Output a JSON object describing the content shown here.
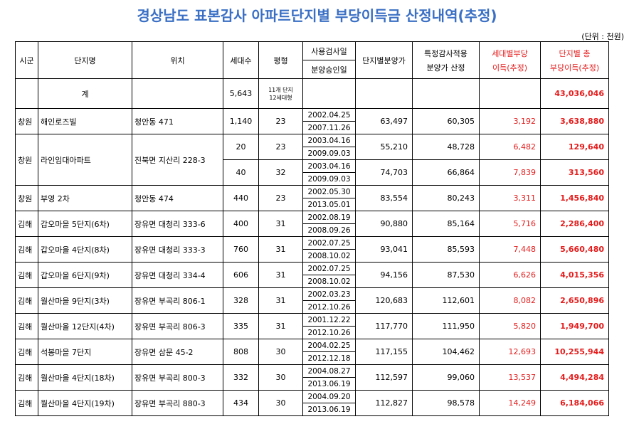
{
  "title": "경상남도 표본감사 아파트단지별 부당이득금 산정내역(추정)",
  "unit": "(단위 : 천원)",
  "headers": {
    "sigun": "시군",
    "complex": "단지명",
    "location": "위치",
    "households": "세대수",
    "pyeong": "평형",
    "inspect_date": "사용검사일",
    "approval_date": "분양승인일",
    "complex_price": "단지별분양가",
    "audit_price_1": "특정감사적용",
    "audit_price_2": "분양가 산정",
    "per_household_1": "세대별부당",
    "per_household_2": "이득(추정)",
    "total_1": "단지별 총",
    "total_2": "부당이득(추정)"
  },
  "total_row": {
    "label": "계",
    "households": "5,643",
    "pyeong_1": "11개 단지",
    "pyeong_2": "12세대형",
    "total": "43,036,046"
  },
  "rows": [
    {
      "sigun": "창원",
      "complex": "해인로즈빌",
      "location": "청안동 471",
      "units": [
        {
          "households": "1,140",
          "pyeong": "23",
          "inspect": "2002.04.25",
          "approval": "2007.11.26",
          "complex_price": "63,497",
          "audit_price": "60,305",
          "per_household": "3,192",
          "total": "3,638,880"
        }
      ]
    },
    {
      "sigun": "창원",
      "complex": "라인임대아파트",
      "location": "진북면 지산리 228-3",
      "units": [
        {
          "households": "20",
          "pyeong": "23",
          "inspect": "2003.04.16",
          "approval": "2009.09.03",
          "complex_price": "55,210",
          "audit_price": "48,728",
          "per_household": "6,482",
          "total": "129,640"
        },
        {
          "households": "40",
          "pyeong": "32",
          "inspect": "2003.04.16",
          "approval": "2009.09.03",
          "complex_price": "74,703",
          "audit_price": "66,864",
          "per_household": "7,839",
          "total": "313,560"
        }
      ]
    },
    {
      "sigun": "창원",
      "complex": "부영 2차",
      "location": "청안동 474",
      "units": [
        {
          "households": "440",
          "pyeong": "23",
          "inspect": "2002.05.30",
          "approval": "2013.05.01",
          "complex_price": "83,554",
          "audit_price": "80,243",
          "per_household": "3,311",
          "total": "1,456,840"
        }
      ]
    },
    {
      "sigun": "김해",
      "complex": "갑오마을 5단지(6차)",
      "location": "장유면 대청리 333-6",
      "units": [
        {
          "households": "400",
          "pyeong": "31",
          "inspect": "2002.08.19",
          "approval": "2008.09.26",
          "complex_price": "90,880",
          "audit_price": "85,164",
          "per_household": "5,716",
          "total": "2,286,400"
        }
      ]
    },
    {
      "sigun": "김해",
      "complex": "갑오마을 4단지(8차)",
      "location": "장유면 대청리 333-3",
      "units": [
        {
          "households": "760",
          "pyeong": "31",
          "inspect": "2002.07.25",
          "approval": "2008.10.02",
          "complex_price": "93,041",
          "audit_price": "85,593",
          "per_household": "7,448",
          "total": "5,660,480"
        }
      ]
    },
    {
      "sigun": "김해",
      "complex": "갑오마을 6단지(9차)",
      "location": "장유면 대청리 334-4",
      "units": [
        {
          "households": "606",
          "pyeong": "31",
          "inspect": "2002.07.25",
          "approval": "2008.10.02",
          "complex_price": "94,156",
          "audit_price": "87,530",
          "per_household": "6,626",
          "total": "4,015,356"
        }
      ]
    },
    {
      "sigun": "김해",
      "complex": "월산마을 9단지(3차)",
      "location": "장유면 부곡리 806-1",
      "units": [
        {
          "households": "328",
          "pyeong": "31",
          "inspect": "2002.03.23",
          "approval": "2012.10.26",
          "complex_price": "120,683",
          "audit_price": "112,601",
          "per_household": "8,082",
          "total": "2,650,896"
        }
      ]
    },
    {
      "sigun": "김해",
      "complex": "월산마을 12단지(4차)",
      "location": "장유면 부곡리 806-3",
      "units": [
        {
          "households": "335",
          "pyeong": "31",
          "inspect": "2001.12.22",
          "approval": "2012.10.26",
          "complex_price": "117,770",
          "audit_price": "111,950",
          "per_household": "5,820",
          "total": "1,949,700"
        }
      ]
    },
    {
      "sigun": "김해",
      "complex": "석봉마을 7단지",
      "location": "장유면 삼문 45-2",
      "units": [
        {
          "households": "808",
          "pyeong": "30",
          "inspect": "2004.02.25",
          "approval": "2012.12.18",
          "complex_price": "117,155",
          "audit_price": "104,462",
          "per_household": "12,693",
          "total": "10,255,944"
        }
      ]
    },
    {
      "sigun": "김해",
      "complex": "월산마을 4단지(18차)",
      "location": "장유면 부곡리 800-3",
      "units": [
        {
          "households": "332",
          "pyeong": "30",
          "inspect": "2004.08.27",
          "approval": "2013.06.19",
          "complex_price": "112,597",
          "audit_price": "99,060",
          "per_household": "13,537",
          "total": "4,494,284"
        }
      ]
    },
    {
      "sigun": "김해",
      "complex": "월산마을 4단지(19차)",
      "location": "장유면 부곡리 880-3",
      "units": [
        {
          "households": "434",
          "pyeong": "30",
          "inspect": "2004.09.20",
          "approval": "2013.06.19",
          "complex_price": "112,827",
          "audit_price": "98,578",
          "per_household": "14,249",
          "total": "6,184,066"
        }
      ]
    }
  ]
}
